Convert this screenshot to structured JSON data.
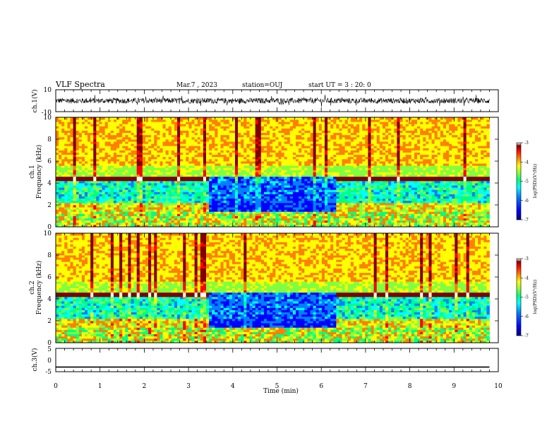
{
  "header": {
    "title": "VLF Spectra",
    "date": "Mar.7 , 2023",
    "station": "station=OUJ",
    "start": "start UT =  3 : 20: 0"
  },
  "colors": {
    "colormap": [
      "#ffffff",
      "#7f0000",
      "#ff0000",
      "#ff8000",
      "#ffff00",
      "#80ff40",
      "#00ff80",
      "#00ffff",
      "#0080ff",
      "#0000ff",
      "#00007f"
    ],
    "trace": "#000000"
  },
  "chart_data": [
    {
      "type": "line",
      "panel": "ch1-waveform",
      "ylabel": "ch.1(V)",
      "ylim": [
        -10,
        10
      ],
      "y_tick_labels": [
        "10",
        "-10"
      ],
      "xlim": [
        0,
        10
      ],
      "description_of_series": "broadband noise waveform around 0 V, amplitude about ±4 V with sharp spikes"
    },
    {
      "type": "heatmap",
      "panel": "ch1-spectrogram",
      "ylabel": "ch.1\nFrequency (kHz)",
      "ylim": [
        0,
        10
      ],
      "y_tick_labels": [
        "0",
        "2",
        "4",
        "6",
        "8",
        "10"
      ],
      "xlim": [
        0,
        10
      ],
      "colorbar": {
        "label": "log(PSD)(V²/Hz)",
        "range": [
          -7,
          -3
        ],
        "tick_labels": [
          "-3",
          "-4",
          "-5",
          "-6",
          "-7"
        ]
      },
      "quiet_interval_min": [
        3.4,
        6.3
      ]
    },
    {
      "type": "heatmap",
      "panel": "ch2-spectrogram",
      "ylabel": "ch.2\nFrequency (kHz)",
      "ylim": [
        0,
        10
      ],
      "y_tick_labels": [
        "0",
        "2",
        "4",
        "6",
        "8",
        "10"
      ],
      "xlim": [
        0,
        10
      ],
      "colorbar": {
        "label": "log(PSD)(V²/Hz)",
        "range": [
          -7,
          -3
        ],
        "tick_labels": [
          "-3",
          "-4",
          "-5",
          "-6",
          "-7"
        ]
      },
      "quiet_interval_min": [
        3.4,
        6.3
      ]
    },
    {
      "type": "line",
      "panel": "ch3-waveform",
      "ylabel": "ch.3(V)",
      "ylim": [
        -5,
        5
      ],
      "y_tick_labels": [
        "5",
        "0",
        "-5"
      ],
      "xlim": [
        0,
        10
      ],
      "series": [
        {
          "x": [
            0,
            9.8
          ],
          "y": [
            -3,
            -3
          ]
        }
      ]
    }
  ],
  "xaxis": {
    "label": "Time (min)",
    "tick_labels": [
      "0",
      "1",
      "2",
      "3",
      "4",
      "5",
      "6",
      "7",
      "8",
      "9",
      "10"
    ],
    "range": [
      0,
      10
    ]
  }
}
